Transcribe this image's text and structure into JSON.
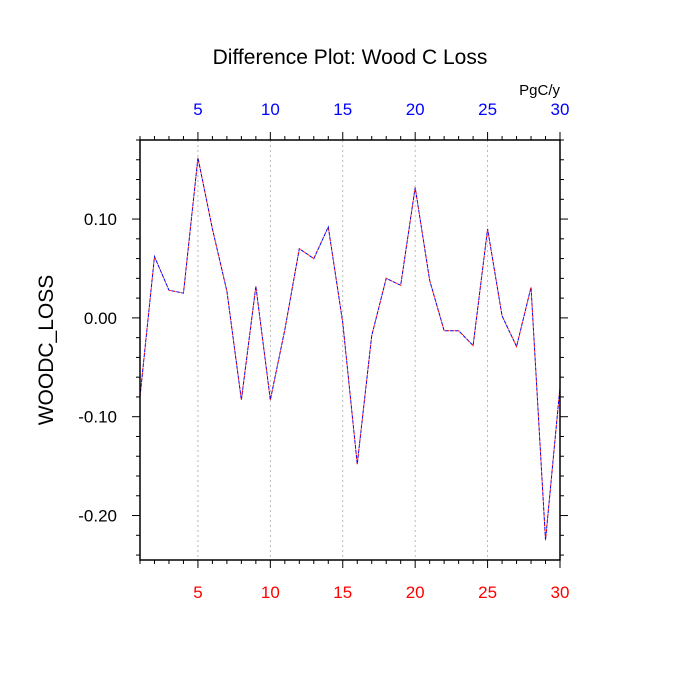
{
  "chart_data": {
    "type": "line",
    "title": "Difference Plot: Wood C Loss",
    "units": "PgC/y",
    "ylabel": "WOODC_LOSS",
    "xlabel": "",
    "xlim": [
      1,
      30
    ],
    "ylim": [
      -0.245,
      0.18
    ],
    "grid": "vertical dashed at major x ticks",
    "x_ticks": [
      5,
      10,
      15,
      20,
      25,
      30
    ],
    "y_ticks": [
      -0.2,
      -0.1,
      0.0,
      0.1
    ],
    "y_tick_labels": [
      "-0.20",
      "-0.10",
      "0.00",
      "0.10"
    ],
    "top_axis_color": "#0000ff",
    "bottom_axis_color": "#ff0000",
    "series": [
      {
        "color": "#0000ff",
        "x": [
          1,
          2,
          3,
          4,
          5,
          6,
          7,
          8,
          9,
          10,
          11,
          12,
          13,
          14,
          15,
          16,
          17,
          18,
          19,
          20,
          21,
          22,
          23,
          24,
          25,
          26,
          27,
          28,
          29,
          30
        ],
        "values": [
          -0.08,
          0.062,
          0.028,
          0.025,
          0.162,
          0.09,
          0.027,
          -0.083,
          0.032,
          -0.083,
          -0.012,
          0.07,
          0.06,
          0.092,
          -0.005,
          -0.148,
          -0.018,
          0.04,
          0.033,
          0.132,
          0.038,
          -0.013,
          -0.013,
          -0.028,
          0.09,
          0.002,
          -0.029,
          0.031,
          -0.225,
          -0.07
        ]
      },
      {
        "color": "#ff0000",
        "x": [
          1,
          2,
          3,
          4,
          5,
          6,
          7,
          8,
          9,
          10,
          11,
          12,
          13,
          14,
          15,
          16,
          17,
          18,
          19,
          20,
          21,
          22,
          23,
          24,
          25,
          26,
          27,
          28,
          29,
          30
        ],
        "values": [
          -0.08,
          0.062,
          0.028,
          0.025,
          0.162,
          0.09,
          0.027,
          -0.083,
          0.032,
          -0.083,
          -0.012,
          0.07,
          0.06,
          0.092,
          -0.005,
          -0.148,
          -0.018,
          0.04,
          0.033,
          0.132,
          0.038,
          -0.013,
          -0.013,
          -0.028,
          0.09,
          0.002,
          -0.029,
          0.031,
          -0.225,
          -0.07
        ]
      }
    ]
  }
}
